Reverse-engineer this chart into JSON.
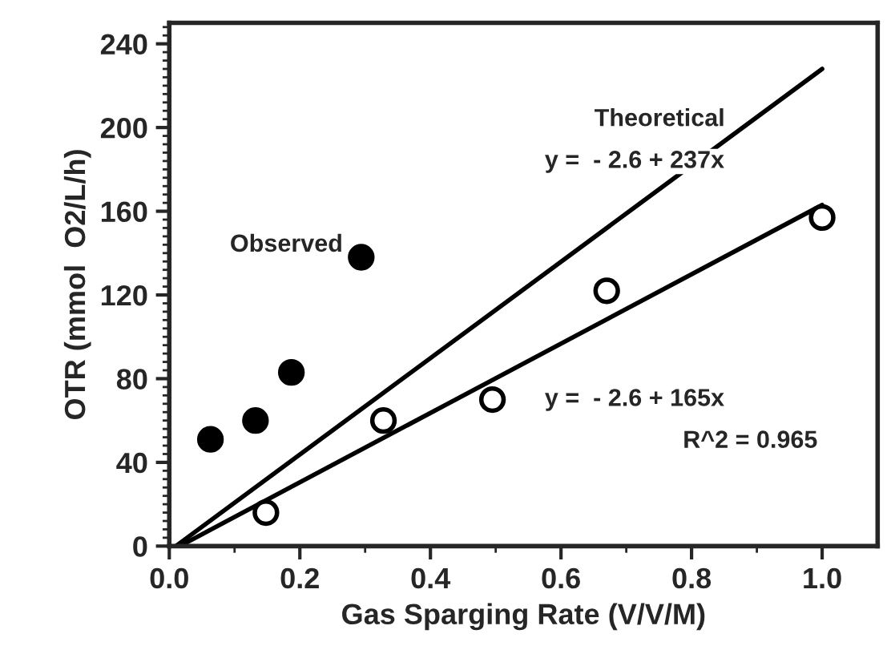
{
  "chart_data": {
    "type": "scatter",
    "xlabel": "Gas Sparging Rate (V/V/M)",
    "ylabel": "OTR (mmol  O2/L/h)",
    "xlim": [
      0,
      1.085
    ],
    "ylim": [
      0,
      250
    ],
    "xticks": [
      {
        "value": 0,
        "label": "0.0"
      },
      {
        "value": 0.2,
        "label": "0.2"
      },
      {
        "value": 0.4,
        "label": "0.4"
      },
      {
        "value": 0.6,
        "label": "0.6"
      },
      {
        "value": 0.8,
        "label": "0.8"
      },
      {
        "value": 1.0,
        "label": "1.0"
      }
    ],
    "yticks": [
      0,
      40,
      80,
      120,
      160,
      200,
      240
    ],
    "grid": false,
    "series": [
      {
        "color": "#000000",
        "marker": "circle",
        "x": [
          0.063,
          0.132,
          0.187,
          0.294
        ],
        "values": [
          51,
          60,
          83,
          138
        ]
      },
      {
        "color": "#ffffff",
        "marker": "circle",
        "x": [
          0.148,
          0.328,
          0.495,
          0.67,
          1.0
        ],
        "values": [
          16,
          60,
          70,
          122,
          157
        ]
      },
      {
        "type": "line",
        "color": "#000000",
        "x": [
          0.01,
          1.0
        ],
        "values": [
          0,
          228
        ]
      },
      {
        "type": "line",
        "color": "#000000",
        "x": [
          0.016,
          1.0
        ],
        "values": [
          0,
          163
        ]
      }
    ],
    "annotations": [
      "Observed",
      "Theoretical",
      "y =  - 2.6 + 237x",
      "y =  - 2.6 + 165x",
      "R^2 = 0.965"
    ]
  }
}
